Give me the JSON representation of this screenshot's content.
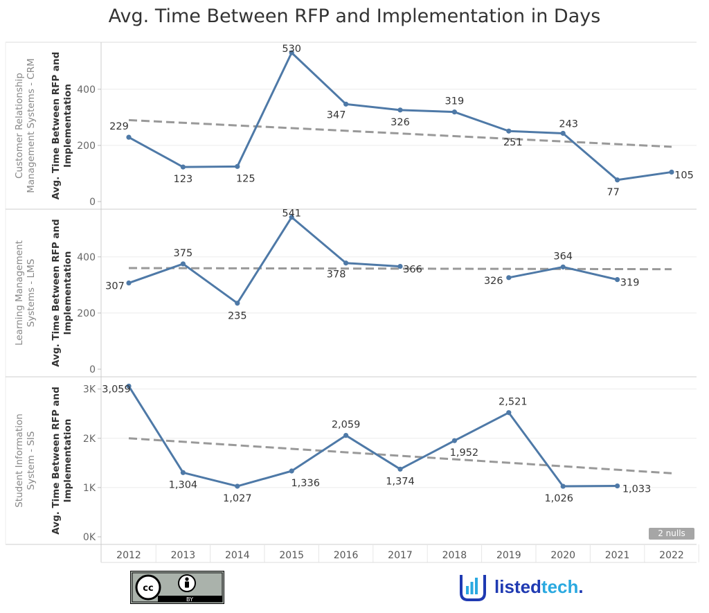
{
  "title": "Avg. Time Between RFP and Implementation in Days",
  "nulls_badge": "2 nulls",
  "license_badge": {
    "cc": "cc",
    "by": "BY"
  },
  "brand": {
    "name_part1": "listed",
    "name_part2": "tech",
    "trailing": "."
  },
  "colors": {
    "line": "#4e79a7",
    "trend": "#999999",
    "grid": "#ebebeb",
    "brand_blue": "#1f3ab2",
    "brand_teal": "#2aa9e0"
  },
  "chart_data": {
    "type": "line",
    "x": [
      2012,
      2013,
      2014,
      2015,
      2016,
      2017,
      2018,
      2019,
      2020,
      2021,
      2022
    ],
    "panels": [
      {
        "row_label": "Customer Relationship Management Systems - CRM",
        "ylabel": "Avg. Time Between RFP and Implementation",
        "ylim": [
          0,
          550
        ],
        "yticks": [
          0,
          200,
          400
        ],
        "ytick_labels": [
          "0",
          "200",
          "400"
        ],
        "values": [
          229,
          123,
          125,
          530,
          347,
          326,
          319,
          251,
          243,
          77,
          105
        ],
        "labels": [
          "229",
          "123",
          "125",
          "530",
          "347",
          "326",
          "319",
          "251",
          "243",
          "77",
          "105"
        ],
        "trend": [
          290,
          195
        ]
      },
      {
        "row_label": "Learning Management Systems - LMS",
        "ylabel": "Avg. Time Between RFP and Implementation",
        "ylim": [
          0,
          550
        ],
        "yticks": [
          0,
          200,
          400
        ],
        "ytick_labels": [
          "0",
          "200",
          "400"
        ],
        "values": [
          307,
          375,
          235,
          541,
          378,
          366,
          null,
          326,
          364,
          319,
          null
        ],
        "labels": [
          "307",
          "375",
          "235",
          "541",
          "378",
          "366",
          "",
          "326",
          "364",
          "319",
          ""
        ],
        "trend": [
          360,
          356
        ]
      },
      {
        "row_label": "Student Information System - SIS",
        "ylabel": "Avg. Time Between RFP and Implementation",
        "ylim": [
          0,
          3150
        ],
        "yticks": [
          0,
          1000,
          2000,
          3000
        ],
        "ytick_labels": [
          "0K",
          "1K",
          "2K",
          "3K"
        ],
        "values": [
          3059,
          1304,
          1027,
          1336,
          2059,
          1374,
          1952,
          2521,
          1026,
          1033,
          null
        ],
        "labels": [
          "3,059",
          "1,304",
          "1,027",
          "1,336",
          "2,059",
          "1,374",
          "1,952",
          "2,521",
          "1,026",
          "1,033",
          ""
        ],
        "trend": [
          2000,
          1290
        ]
      }
    ]
  }
}
